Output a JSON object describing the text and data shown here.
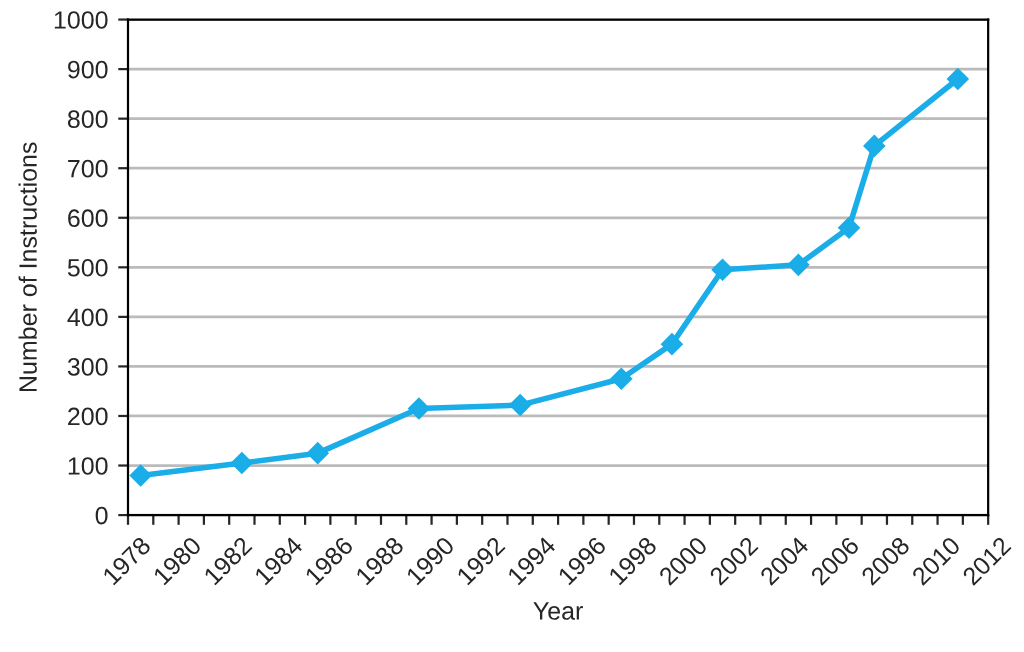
{
  "chart_data": {
    "type": "line",
    "xlabel": "Year",
    "ylabel": "Number of Instructions",
    "x": [
      1978.5,
      1982.5,
      1985.5,
      1989.5,
      1993.5,
      1997.5,
      1999.5,
      2001.5,
      2004.5,
      2006.5,
      2007.5,
      2010.8
    ],
    "series": [
      {
        "color": "#1aade8",
        "values": [
          80,
          105,
          125,
          215,
          222,
          275,
          345,
          495,
          505,
          580,
          745,
          880
        ]
      }
    ],
    "xlim": [
      1978,
      2012
    ],
    "xticks": [
      1978,
      {
        "value": 1979,
        "label": null
      },
      1980,
      {
        "value": 1981,
        "label": null
      },
      1982,
      {
        "value": 1983,
        "label": null
      },
      1984,
      {
        "value": 1985,
        "label": null
      },
      1986,
      {
        "value": 1987,
        "label": null
      },
      1988,
      {
        "value": 1989,
        "label": null
      },
      1990,
      {
        "value": 1991,
        "label": null
      },
      1992,
      {
        "value": 1993,
        "label": null
      },
      1994,
      {
        "value": 1995,
        "label": null
      },
      1996,
      {
        "value": 1997,
        "label": null
      },
      1998,
      {
        "value": 1999,
        "label": null
      },
      2000,
      {
        "value": 2001,
        "label": null
      },
      2002,
      {
        "value": 2003,
        "label": null
      },
      2004,
      {
        "value": 2005,
        "label": null
      },
      2006,
      {
        "value": 2007,
        "label": null
      },
      2008,
      {
        "value": 2009,
        "label": null
      },
      2010,
      {
        "value": 2011,
        "label": null
      },
      2012
    ],
    "ylim": [
      0,
      1000
    ],
    "yticks": [
      0,
      100,
      200,
      300,
      400,
      500,
      600,
      700,
      800,
      900,
      1000
    ],
    "marker": "diamond",
    "line_style": "solid",
    "grid": "y",
    "legend": false
  }
}
